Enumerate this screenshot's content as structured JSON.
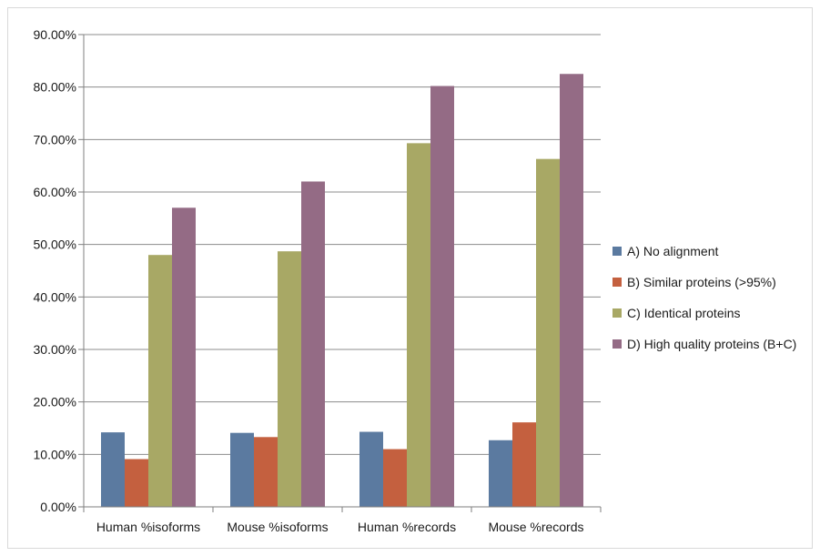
{
  "chart_data": {
    "type": "bar",
    "categories": [
      "Human %isoforms",
      "Mouse %isoforms",
      "Human %records",
      "Mouse %records"
    ],
    "series": [
      {
        "name": "A) No alignment",
        "color": "#5b7aa0",
        "values": [
          14.2,
          14.1,
          14.3,
          12.7
        ]
      },
      {
        "name": "B) Similar proteins (>95%)",
        "color": "#c4603f",
        "values": [
          9.1,
          13.3,
          11.0,
          16.1
        ]
      },
      {
        "name": "C) Identical proteins",
        "color": "#a8a865",
        "values": [
          48.0,
          48.7,
          69.3,
          66.3
        ]
      },
      {
        "name": "D) High quality proteins (B+C)",
        "color": "#946b85",
        "values": [
          57.0,
          62.0,
          80.2,
          82.5
        ]
      }
    ],
    "ylim": [
      0,
      90
    ],
    "yticks": [
      "0.00%",
      "10.00%",
      "20.00%",
      "30.00%",
      "40.00%",
      "50.00%",
      "60.00%",
      "70.00%",
      "80.00%",
      "90.00%"
    ],
    "ytick_values": [
      0,
      10,
      20,
      30,
      40,
      50,
      60,
      70,
      80,
      90
    ],
    "grid": true,
    "legend_position": "right",
    "title": "",
    "xlabel": "",
    "ylabel": ""
  }
}
